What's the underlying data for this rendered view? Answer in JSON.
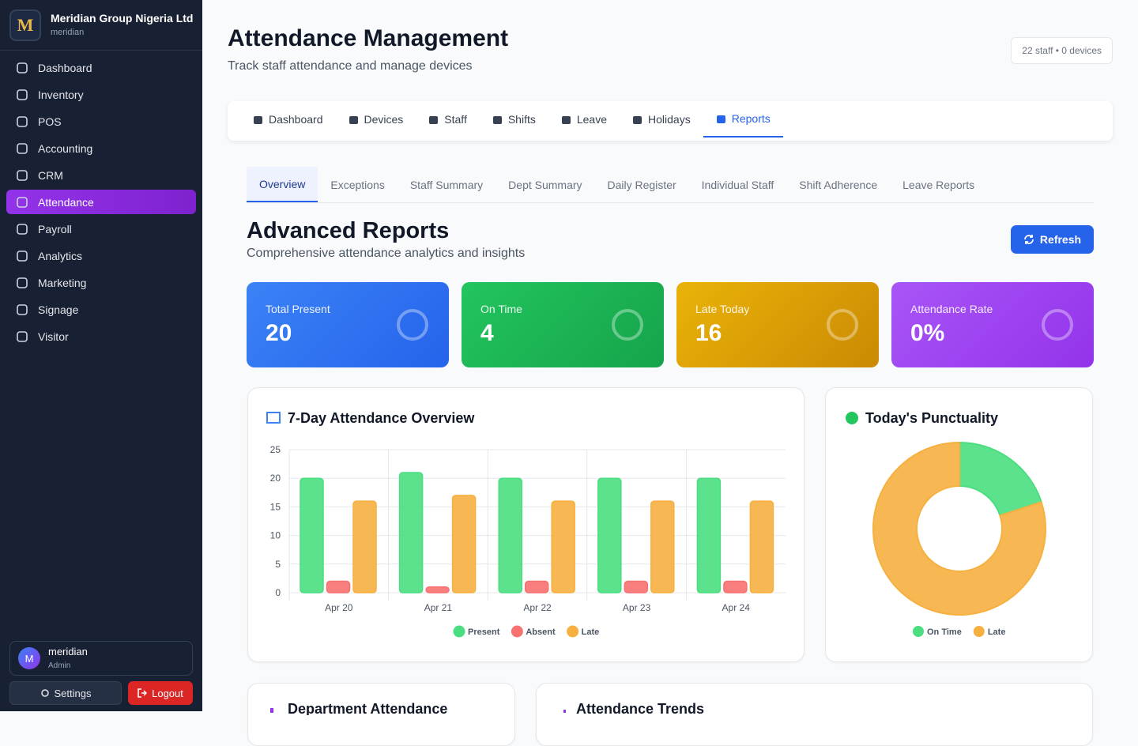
{
  "sidebar": {
    "logo": "M",
    "brand": "Meridian Group Nigeria Ltd",
    "brand_sub": "meridian",
    "nav": [
      "Dashboard",
      "Inventory",
      "POS",
      "Accounting",
      "CRM",
      "Attendance",
      "Payroll",
      "Analytics",
      "Marketing",
      "Signage",
      "Visitor"
    ],
    "user": {
      "avatar": "M",
      "name": "meridian",
      "role": "Admin"
    },
    "settings": "Settings",
    "logout": "Logout"
  },
  "header": {
    "title": "Attendance Management",
    "subtitle": "Track staff attendance and manage devices",
    "badge": "22 staff • 0 devices"
  },
  "tabs": [
    "Dashboard",
    "Devices",
    "Staff",
    "Shifts",
    "Leave",
    "Holidays",
    "Reports"
  ],
  "subtabs": [
    "Overview",
    "Exceptions",
    "Staff Summary",
    "Dept Summary",
    "Daily Register",
    "Individual Staff",
    "Shift Adherence",
    "Leave Reports"
  ],
  "section": {
    "title": "Advanced Reports",
    "subtitle": "Comprehensive attendance analytics and insights",
    "refresh": "Refresh"
  },
  "stats": [
    {
      "label": "Total Present",
      "value": "20"
    },
    {
      "label": "On Time",
      "value": "4"
    },
    {
      "label": "Late Today",
      "value": "16"
    },
    {
      "label": "Attendance Rate",
      "value": "0%"
    }
  ],
  "chart_data": [
    {
      "type": "bar",
      "title": "7-Day Attendance Overview",
      "categories": [
        "Apr 20",
        "Apr 21",
        "Apr 22",
        "Apr 23",
        "Apr 24"
      ],
      "series": [
        {
          "name": "Present",
          "color": "#4ade80",
          "values": [
            20,
            21,
            20,
            20,
            20
          ]
        },
        {
          "name": "Absent",
          "color": "#f87171",
          "values": [
            2,
            1,
            2,
            2,
            2
          ]
        },
        {
          "name": "Late",
          "color": "#f6b040",
          "values": [
            16,
            17,
            16,
            16,
            16
          ]
        }
      ],
      "ylim": [
        0,
        25
      ],
      "yticks": [
        0,
        5,
        10,
        15,
        20,
        25
      ],
      "grid": true
    },
    {
      "type": "doughnut",
      "title": "Today's Punctuality",
      "categories": [
        "On Time",
        "Late"
      ],
      "values": [
        4,
        16
      ],
      "colors": [
        "#4ade80",
        "#f6b040"
      ]
    }
  ],
  "bottom_cards": [
    "Department Attendance",
    "Attendance Trends"
  ]
}
